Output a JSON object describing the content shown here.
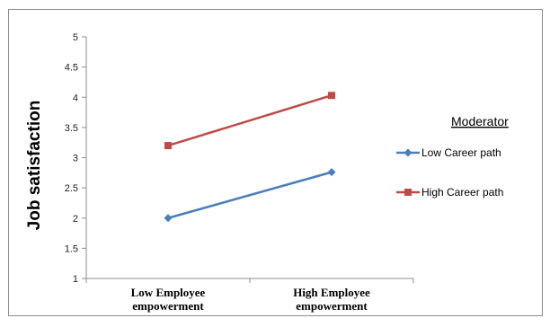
{
  "chart_data": {
    "type": "line",
    "categories": [
      "Low Employee empowerment",
      "High Employee empowerment"
    ],
    "category_lines": [
      [
        "Low Employee",
        "empowerment"
      ],
      [
        "High Employee",
        "empowerment"
      ]
    ],
    "series": [
      {
        "name": "Low Career path",
        "values": [
          2.0,
          2.76
        ],
        "color": "#4a7ebb",
        "marker": "diamond"
      },
      {
        "name": "High Career path",
        "values": [
          3.2,
          4.03
        ],
        "color": "#be4b48",
        "marker": "square"
      }
    ],
    "ylabel": "Job satisfaction",
    "ylim": [
      1,
      5
    ],
    "yticks": [
      "1",
      "1.5",
      "2",
      "2.5",
      "3",
      "3.5",
      "4",
      "4.5",
      "5"
    ],
    "legend_title": "Moderator",
    "legend_position": "right",
    "grid": false
  }
}
